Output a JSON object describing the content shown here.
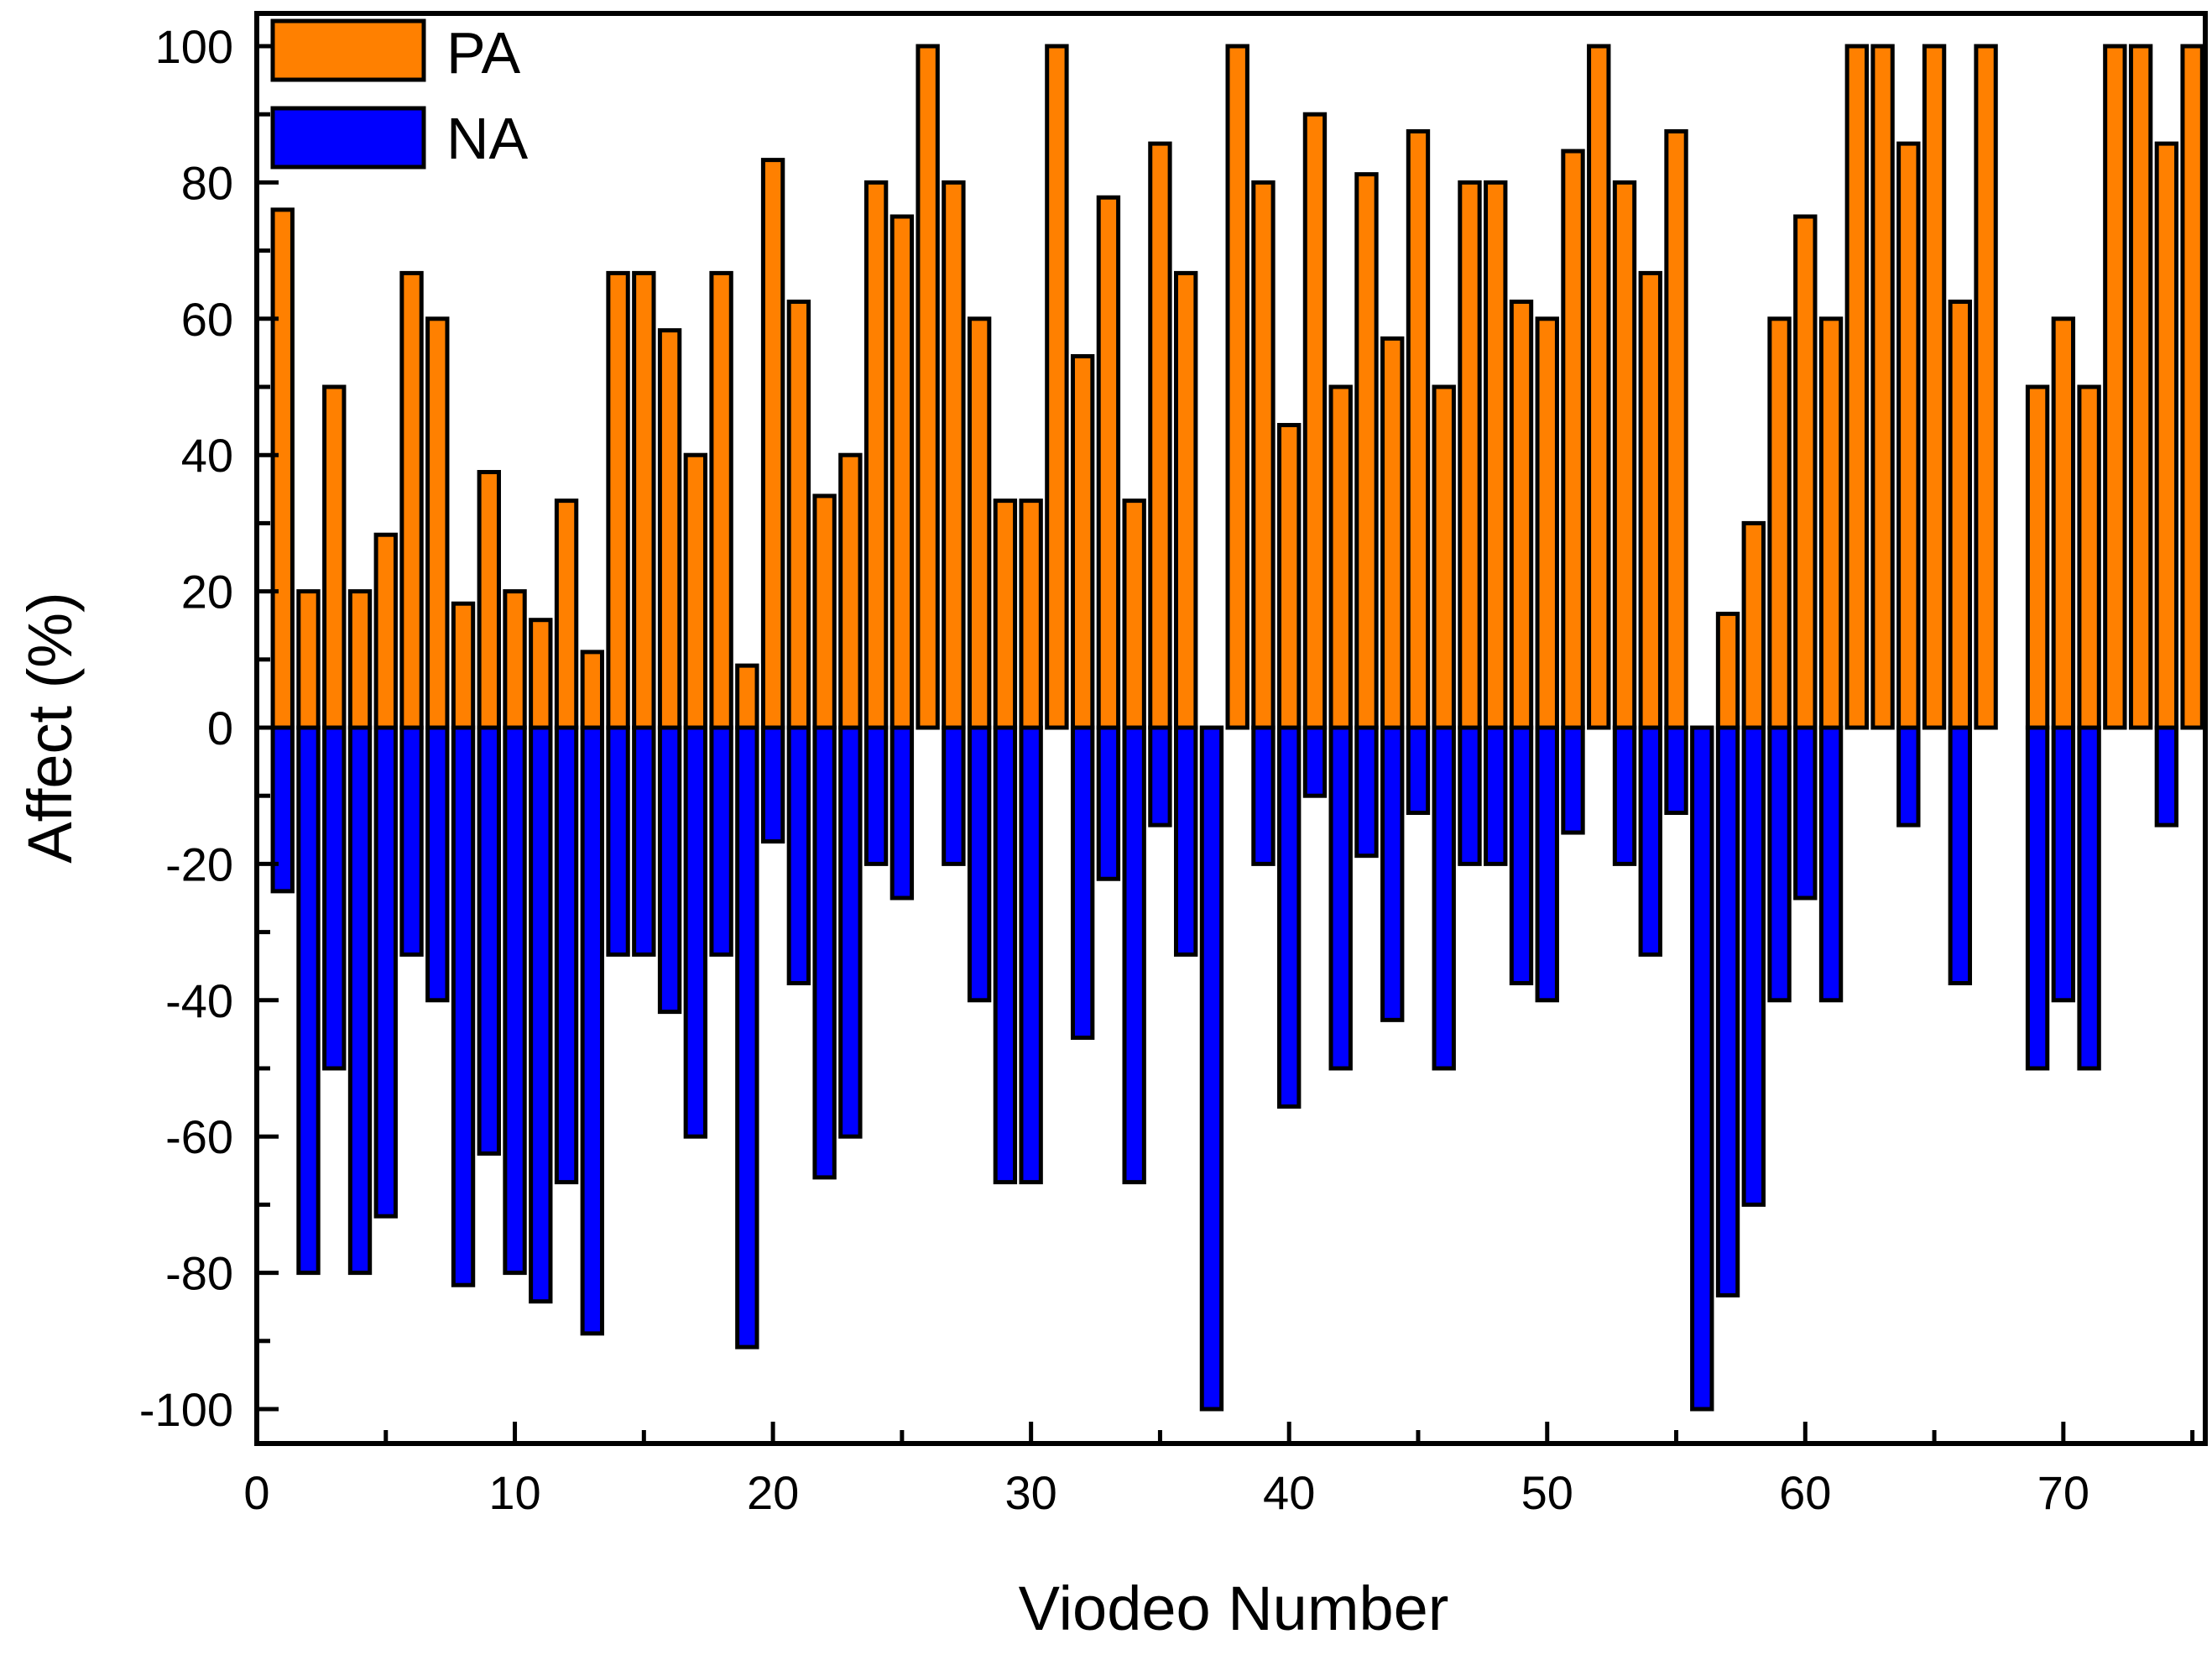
{
  "chart_data": {
    "type": "bar",
    "xlabel": "Viodeo Number",
    "ylabel": "Affect (%)",
    "xlim": [
      0,
      75.5
    ],
    "ylim": [
      -105,
      105
    ],
    "xticks": [
      0,
      10,
      20,
      30,
      40,
      50,
      60,
      70
    ],
    "yticks": [
      -100,
      -80,
      -60,
      -40,
      -20,
      0,
      20,
      40,
      60,
      80,
      100
    ],
    "grid": false,
    "legend_position": "top-left",
    "x": [
      1,
      2,
      3,
      4,
      5,
      6,
      7,
      8,
      9,
      10,
      11,
      12,
      13,
      14,
      15,
      16,
      17,
      18,
      19,
      20,
      21,
      22,
      23,
      24,
      25,
      26,
      27,
      28,
      29,
      30,
      31,
      32,
      33,
      34,
      35,
      36,
      37,
      38,
      39,
      40,
      41,
      42,
      43,
      44,
      45,
      46,
      47,
      48,
      49,
      50,
      51,
      52,
      53,
      54,
      55,
      56,
      57,
      58,
      59,
      60,
      61,
      62,
      63,
      64,
      65,
      66,
      67,
      68,
      69,
      70,
      71,
      72,
      73,
      74,
      75
    ],
    "series": [
      {
        "name": "PA",
        "color": "#FF8000",
        "values": [
          76,
          20,
          50,
          20,
          28.3,
          66.7,
          60,
          18.2,
          37.5,
          20,
          15.8,
          33.3,
          11.1,
          66.7,
          66.7,
          58.3,
          40,
          66.7,
          9.1,
          83.3,
          62.5,
          34,
          40,
          80,
          75,
          100,
          80,
          60,
          33.3,
          33.3,
          100,
          54.5,
          77.8,
          33.3,
          85.7,
          66.7,
          0,
          100,
          80,
          44.4,
          90,
          50,
          81.2,
          57.1,
          87.5,
          50,
          80,
          80,
          62.5,
          60,
          84.6,
          100,
          80,
          66.7,
          87.5,
          0,
          16.7,
          30,
          60,
          75,
          60,
          100,
          100,
          85.7,
          100,
          62.5,
          100,
          0,
          50,
          60,
          50,
          100,
          100,
          85.7,
          100
        ]
      },
      {
        "name": "NA",
        "color": "#0000FF",
        "values": [
          -24,
          -80,
          -50,
          -80,
          -71.7,
          -33.3,
          -40,
          -81.8,
          -62.5,
          -80,
          -84.2,
          -66.7,
          -88.9,
          -33.3,
          -33.3,
          -41.7,
          -60,
          -33.3,
          -90.9,
          -16.7,
          -37.5,
          -66,
          -60,
          -20,
          -25,
          0,
          -20,
          -40,
          -66.7,
          -66.7,
          0,
          -45.5,
          -22.2,
          -66.7,
          -14.3,
          -33.3,
          -100,
          0,
          -20,
          -55.6,
          -10,
          -50,
          -18.8,
          -42.9,
          -12.5,
          -50,
          -20,
          -20,
          -37.5,
          -40,
          -15.4,
          0,
          -20,
          -33.3,
          -12.5,
          -100,
          -83.3,
          -70,
          -40,
          -25,
          -40,
          0,
          0,
          -14.3,
          0,
          -37.5,
          0,
          0,
          -50,
          -40,
          -50,
          0,
          0,
          -14.3,
          0
        ]
      }
    ]
  }
}
